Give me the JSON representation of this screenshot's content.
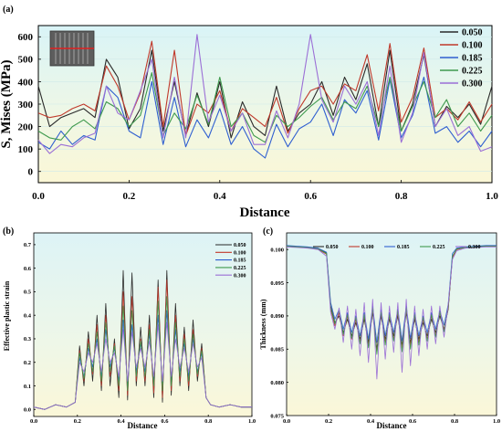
{
  "chart_data": [
    {
      "panel": "(a)",
      "type": "line",
      "xlabel": "Distance",
      "ylabel": "S, Mises (MPa)",
      "xlim": [
        0,
        1.0
      ],
      "ylim": [
        -50,
        650
      ],
      "xticks": [
        "0.0",
        "0.2",
        "0.4",
        "0.6",
        "0.8",
        "1.0"
      ],
      "yticks": [
        "0",
        "100",
        "200",
        "300",
        "400",
        "500",
        "600"
      ],
      "legend_position": "top-right",
      "inset": "specimen thumbnail with red horizontal path line",
      "series": [
        {
          "name": "0.050",
          "color": "#2a2a2a"
        },
        {
          "name": "0.100",
          "color": "#c0392b"
        },
        {
          "name": "0.185",
          "color": "#2f5fd0"
        },
        {
          "name": "0.225",
          "color": "#3f9a4e"
        },
        {
          "name": "0.300",
          "color": "#9b6fd6"
        }
      ],
      "x": [
        0.0,
        0.025,
        0.05,
        0.075,
        0.1,
        0.125,
        0.15,
        0.175,
        0.2,
        0.225,
        0.25,
        0.275,
        0.3,
        0.325,
        0.35,
        0.375,
        0.4,
        0.425,
        0.45,
        0.475,
        0.5,
        0.525,
        0.55,
        0.575,
        0.6,
        0.625,
        0.65,
        0.675,
        0.7,
        0.725,
        0.75,
        0.775,
        0.8,
        0.825,
        0.85,
        0.875,
        0.9,
        0.925,
        0.95,
        0.975,
        1.0
      ],
      "values": [
        [
          380,
          200,
          240,
          260,
          280,
          240,
          500,
          420,
          190,
          280,
          540,
          180,
          400,
          160,
          350,
          200,
          400,
          150,
          310,
          200,
          160,
          380,
          180,
          260,
          300,
          400,
          250,
          420,
          320,
          480,
          200,
          540,
          180,
          300,
          520,
          200,
          290,
          240,
          300,
          210,
          380
        ],
        [
          260,
          240,
          250,
          280,
          300,
          270,
          470,
          380,
          230,
          350,
          580,
          200,
          540,
          160,
          300,
          260,
          360,
          180,
          280,
          240,
          200,
          330,
          170,
          280,
          360,
          380,
          300,
          390,
          360,
          520,
          270,
          570,
          220,
          330,
          550,
          240,
          280,
          230,
          310,
          220,
          300
        ],
        [
          130,
          100,
          180,
          120,
          160,
          140,
          380,
          330,
          180,
          150,
          400,
          120,
          330,
          110,
          230,
          150,
          280,
          120,
          200,
          100,
          60,
          210,
          110,
          190,
          220,
          300,
          160,
          320,
          260,
          360,
          140,
          410,
          150,
          250,
          420,
          170,
          200,
          130,
          180,
          110,
          180
        ],
        [
          180,
          150,
          140,
          200,
          230,
          190,
          310,
          280,
          200,
          250,
          440,
          160,
          260,
          190,
          340,
          210,
          420,
          200,
          260,
          160,
          130,
          250,
          200,
          240,
          290,
          330,
          230,
          310,
          280,
          380,
          200,
          420,
          180,
          290,
          400,
          240,
          320,
          200,
          260,
          180,
          250
        ],
        [
          140,
          80,
          120,
          110,
          150,
          170,
          380,
          260,
          230,
          360,
          500,
          150,
          420,
          150,
          610,
          220,
          340,
          180,
          260,
          120,
          120,
          270,
          150,
          300,
          610,
          320,
          220,
          380,
          300,
          400,
          160,
          470,
          130,
          260,
          530,
          200,
          280,
          160,
          200,
          90,
          110
        ]
      ]
    },
    {
      "panel": "(b)",
      "type": "line",
      "xlabel": "Distance",
      "ylabel": "Effective plastic strain",
      "xlim": [
        0,
        1.0
      ],
      "ylim": [
        -0.03,
        0.75
      ],
      "xticks": [
        "0.0",
        "0.2",
        "0.4",
        "0.6",
        "0.8",
        "1.0"
      ],
      "yticks": [
        "0.0",
        "0.1",
        "0.2",
        "0.3",
        "0.4",
        "0.5",
        "0.6",
        "0.7"
      ],
      "legend_position": "top-right",
      "series": [
        {
          "name": "0.050",
          "color": "#2a2a2a"
        },
        {
          "name": "0.100",
          "color": "#c0392b"
        },
        {
          "name": "0.185",
          "color": "#2f5fd0"
        },
        {
          "name": "0.225",
          "color": "#3f9a4e"
        },
        {
          "name": "0.300",
          "color": "#9b6fd6"
        }
      ],
      "x": [
        0.0,
        0.05,
        0.1,
        0.15,
        0.19,
        0.21,
        0.23,
        0.25,
        0.27,
        0.29,
        0.31,
        0.33,
        0.35,
        0.37,
        0.39,
        0.41,
        0.43,
        0.45,
        0.47,
        0.49,
        0.51,
        0.53,
        0.55,
        0.57,
        0.59,
        0.61,
        0.63,
        0.65,
        0.67,
        0.69,
        0.71,
        0.73,
        0.75,
        0.77,
        0.79,
        0.81,
        0.85,
        0.9,
        0.95,
        1.0
      ],
      "values": [
        [
          0.01,
          0.0,
          0.02,
          0.01,
          0.03,
          0.27,
          0.1,
          0.33,
          0.12,
          0.4,
          0.08,
          0.45,
          0.1,
          0.3,
          0.05,
          0.59,
          0.04,
          0.58,
          0.1,
          0.35,
          0.1,
          0.4,
          0.05,
          0.55,
          0.03,
          0.59,
          0.06,
          0.45,
          0.1,
          0.35,
          0.08,
          0.38,
          0.12,
          0.28,
          0.05,
          0.02,
          0.01,
          0.02,
          0.01,
          0.01
        ],
        [
          0.01,
          0.0,
          0.02,
          0.01,
          0.03,
          0.25,
          0.12,
          0.3,
          0.15,
          0.36,
          0.1,
          0.4,
          0.14,
          0.28,
          0.08,
          0.5,
          0.06,
          0.48,
          0.12,
          0.3,
          0.12,
          0.36,
          0.07,
          0.52,
          0.05,
          0.55,
          0.08,
          0.4,
          0.12,
          0.32,
          0.1,
          0.34,
          0.14,
          0.26,
          0.05,
          0.02,
          0.01,
          0.02,
          0.01,
          0.01
        ],
        [
          0.01,
          0.0,
          0.02,
          0.01,
          0.03,
          0.22,
          0.14,
          0.26,
          0.18,
          0.3,
          0.14,
          0.34,
          0.18,
          0.26,
          0.12,
          0.38,
          0.1,
          0.36,
          0.16,
          0.28,
          0.16,
          0.32,
          0.12,
          0.4,
          0.1,
          0.42,
          0.12,
          0.34,
          0.16,
          0.28,
          0.14,
          0.3,
          0.16,
          0.24,
          0.05,
          0.02,
          0.01,
          0.02,
          0.01,
          0.01
        ],
        [
          0.01,
          0.0,
          0.02,
          0.01,
          0.03,
          0.24,
          0.13,
          0.28,
          0.16,
          0.33,
          0.12,
          0.37,
          0.16,
          0.27,
          0.1,
          0.44,
          0.08,
          0.42,
          0.14,
          0.29,
          0.14,
          0.34,
          0.1,
          0.46,
          0.08,
          0.48,
          0.1,
          0.37,
          0.14,
          0.3,
          0.12,
          0.32,
          0.15,
          0.25,
          0.05,
          0.02,
          0.01,
          0.02,
          0.01,
          0.01
        ],
        [
          0.01,
          0.0,
          0.02,
          0.01,
          0.03,
          0.2,
          0.16,
          0.24,
          0.2,
          0.28,
          0.16,
          0.3,
          0.2,
          0.24,
          0.14,
          0.34,
          0.12,
          0.33,
          0.18,
          0.26,
          0.18,
          0.29,
          0.14,
          0.36,
          0.12,
          0.37,
          0.14,
          0.3,
          0.18,
          0.26,
          0.16,
          0.28,
          0.18,
          0.22,
          0.05,
          0.02,
          0.01,
          0.02,
          0.01,
          0.01
        ]
      ]
    },
    {
      "panel": "(c)",
      "type": "line",
      "xlabel": "Distance",
      "ylabel": "Thickness (mm)",
      "xlim": [
        0,
        1.0
      ],
      "ylim": [
        0.075,
        0.1025
      ],
      "xticks": [
        "0.0",
        "0.2",
        "0.4",
        "0.6",
        "0.8",
        "1.0"
      ],
      "yticks": [
        "0.075",
        "0.080",
        "0.085",
        "0.090",
        "0.095",
        "0.100"
      ],
      "legend_position": "top",
      "series": [
        {
          "name": "0.050",
          "color": "#2a2a2a"
        },
        {
          "name": "0.100",
          "color": "#c0392b"
        },
        {
          "name": "0.185",
          "color": "#2f5fd0"
        },
        {
          "name": "0.225",
          "color": "#3f9a4e"
        },
        {
          "name": "0.300",
          "color": "#9b6fd6"
        }
      ],
      "x": [
        0.0,
        0.05,
        0.1,
        0.15,
        0.19,
        0.21,
        0.23,
        0.25,
        0.27,
        0.29,
        0.31,
        0.33,
        0.35,
        0.37,
        0.39,
        0.41,
        0.43,
        0.45,
        0.47,
        0.49,
        0.51,
        0.53,
        0.55,
        0.57,
        0.59,
        0.61,
        0.63,
        0.65,
        0.67,
        0.69,
        0.71,
        0.73,
        0.75,
        0.77,
        0.79,
        0.81,
        0.85,
        0.9,
        0.95,
        1.0
      ],
      "values": [
        [
          0.1005,
          0.1004,
          0.1003,
          0.1001,
          0.0995,
          0.0915,
          0.089,
          0.09,
          0.0875,
          0.0895,
          0.087,
          0.089,
          0.0865,
          0.0895,
          0.086,
          0.0905,
          0.085,
          0.09,
          0.0865,
          0.0895,
          0.087,
          0.09,
          0.0855,
          0.0905,
          0.086,
          0.0895,
          0.0865,
          0.089,
          0.087,
          0.0895,
          0.0875,
          0.09,
          0.088,
          0.091,
          0.099,
          0.1,
          0.1003,
          0.1004,
          0.1005,
          0.1005
        ],
        [
          0.1005,
          0.1004,
          0.1003,
          0.1,
          0.0993,
          0.091,
          0.0885,
          0.0905,
          0.087,
          0.09,
          0.0865,
          0.0895,
          0.086,
          0.09,
          0.0855,
          0.091,
          0.0845,
          0.0905,
          0.086,
          0.09,
          0.0865,
          0.0905,
          0.085,
          0.091,
          0.0855,
          0.09,
          0.086,
          0.0895,
          0.0865,
          0.09,
          0.087,
          0.0905,
          0.0878,
          0.0912,
          0.0988,
          0.1,
          0.1003,
          0.1004,
          0.1005,
          0.1005
        ],
        [
          0.1006,
          0.1005,
          0.1004,
          0.1002,
          0.0996,
          0.092,
          0.0895,
          0.091,
          0.088,
          0.0905,
          0.0875,
          0.09,
          0.087,
          0.0905,
          0.0865,
          0.0915,
          0.086,
          0.091,
          0.087,
          0.0905,
          0.0875,
          0.091,
          0.0862,
          0.0915,
          0.0866,
          0.0905,
          0.087,
          0.09,
          0.0875,
          0.0905,
          0.088,
          0.0908,
          0.0886,
          0.0918,
          0.0994,
          0.1002,
          0.1004,
          0.1005,
          0.1006,
          0.1006
        ],
        [
          0.1005,
          0.1004,
          0.1003,
          0.1001,
          0.0994,
          0.0912,
          0.0888,
          0.0908,
          0.0872,
          0.0902,
          0.0866,
          0.0898,
          0.0858,
          0.0902,
          0.0852,
          0.0912,
          0.0842,
          0.0906,
          0.0856,
          0.0902,
          0.0862,
          0.0908,
          0.0846,
          0.0912,
          0.085,
          0.0902,
          0.0856,
          0.0898,
          0.0862,
          0.0902,
          0.0868,
          0.0906,
          0.0876,
          0.0914,
          0.099,
          0.1001,
          0.1003,
          0.1004,
          0.1005,
          0.1005
        ],
        [
          0.1004,
          0.1003,
          0.1002,
          0.1,
          0.099,
          0.0905,
          0.088,
          0.0912,
          0.086,
          0.0915,
          0.085,
          0.091,
          0.084,
          0.092,
          0.083,
          0.0925,
          0.0805,
          0.092,
          0.0835,
          0.0915,
          0.0845,
          0.092,
          0.0815,
          0.0925,
          0.0825,
          0.0915,
          0.084,
          0.091,
          0.085,
          0.0915,
          0.0858,
          0.0915,
          0.0868,
          0.0918,
          0.0985,
          0.0998,
          0.1002,
          0.1003,
          0.1004,
          0.1004
        ]
      ]
    }
  ]
}
